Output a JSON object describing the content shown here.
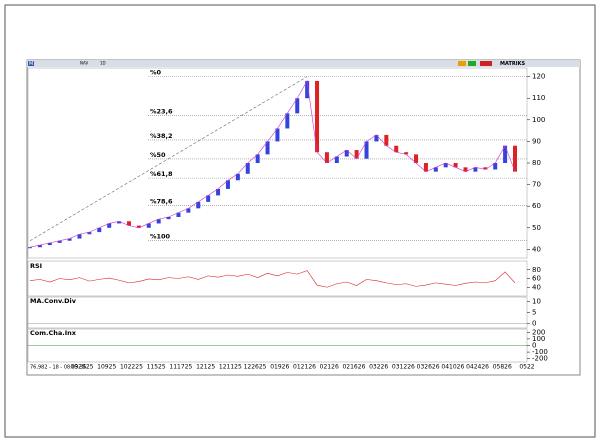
{
  "toolbar": {
    "logo": "M",
    "fields": [
      "NAV",
      "1D",
      "MATRIKS"
    ]
  },
  "price_panel": {
    "ylim": [
      36,
      124
    ],
    "yticks": [
      40,
      50,
      60,
      70,
      80,
      90,
      100,
      110,
      120
    ],
    "fib_levels": [
      {
        "value": 120,
        "label": "%0"
      },
      {
        "value": 101.9,
        "label": "%23,6"
      },
      {
        "value": 90.7,
        "label": "%38,2"
      },
      {
        "value": 81.9,
        "label": "%50"
      },
      {
        "value": 73,
        "label": "%61,8"
      },
      {
        "value": 60.3,
        "label": "%78,6"
      },
      {
        "value": 44,
        "label": "%100"
      }
    ],
    "values": [
      41,
      42,
      43,
      44,
      45,
      47,
      48,
      50,
      52,
      53,
      51,
      50,
      52,
      54,
      55,
      57,
      59,
      62,
      65,
      68,
      72,
      75,
      80,
      84,
      90,
      96,
      103,
      110,
      118,
      85,
      80,
      83,
      86,
      82,
      90,
      93,
      88,
      85,
      84,
      80,
      76,
      78,
      80,
      78,
      76,
      78,
      77,
      80,
      88,
      76
    ]
  },
  "rsi_panel": {
    "title": "RSI",
    "ylim": [
      20,
      100
    ],
    "yticks": [
      40,
      60,
      80
    ],
    "values": [
      55,
      58,
      52,
      60,
      57,
      62,
      54,
      58,
      61,
      56,
      50,
      53,
      59,
      57,
      62,
      60,
      64,
      58,
      66,
      63,
      68,
      65,
      70,
      62,
      72,
      66,
      74,
      70,
      78,
      45,
      40,
      48,
      52,
      44,
      58,
      55,
      50,
      46,
      48,
      42,
      45,
      50,
      47,
      44,
      49,
      52,
      50,
      55,
      75,
      50
    ]
  },
  "macd_panel": {
    "title": "MA.Conv.Div",
    "ylim": [
      -2,
      12
    ],
    "yticks": [
      0,
      5,
      10
    ]
  },
  "cci_panel": {
    "title": "Com.Cha.Inx",
    "ylim": [
      -250,
      250
    ],
    "yticks": [
      -200,
      -100,
      0,
      100,
      200
    ]
  },
  "date_axis": {
    "status": "76,982 - 18 - 08:03:36",
    "dates": [
      "092525",
      "10925",
      "102225",
      "11525",
      "111725",
      "12125",
      "121125",
      "122625",
      "01926",
      "012126",
      "02126",
      "021626",
      "03226",
      "031226",
      "032626",
      "041026",
      "042426",
      "05826",
      "0522"
    ]
  }
}
